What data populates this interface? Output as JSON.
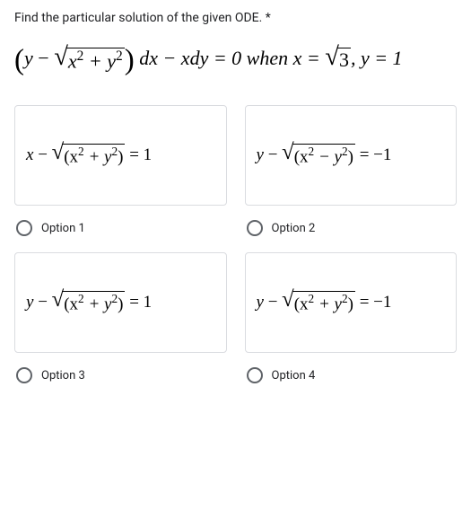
{
  "question": {
    "title": "Find the particular solution of the given ODE. *"
  },
  "mainEq": {
    "lp": "(",
    "rp": ")",
    "y": "y",
    "minus": " − ",
    "sqrt_body": "x",
    "sq": "2",
    "plus": " + y",
    "sq2": "2",
    "after": " dx − xdy = 0 when x = ",
    "sqrt3_body": "3",
    "trail": ", y = 1"
  },
  "options": [
    {
      "eq": {
        "lhs_var": "x",
        "op": " − ",
        "inner_a": "(x",
        "sq1": "2",
        "inner_mid": " + y",
        "sq2": "2",
        "inner_b": ")",
        "rhs": " = 1"
      },
      "label": "Option 1"
    },
    {
      "eq": {
        "lhs_var": "y",
        "op": " − ",
        "inner_a": "(x",
        "sq1": "2",
        "inner_mid": " − y",
        "sq2": "2",
        "inner_b": ")",
        "rhs": " = −1"
      },
      "label": "Option 2"
    },
    {
      "eq": {
        "lhs_var": "y",
        "op": " − ",
        "inner_a": "(x",
        "sq1": "2",
        "inner_mid": " + y",
        "sq2": "2",
        "inner_b": ")",
        "rhs": " = 1"
      },
      "label": "Option 3"
    },
    {
      "eq": {
        "lhs_var": "y",
        "op": " − ",
        "inner_a": "(x",
        "sq1": "2",
        "inner_mid": " + y",
        "sq2": "2",
        "inner_b": ")",
        "rhs": " = −1"
      },
      "label": "Option 4"
    }
  ]
}
